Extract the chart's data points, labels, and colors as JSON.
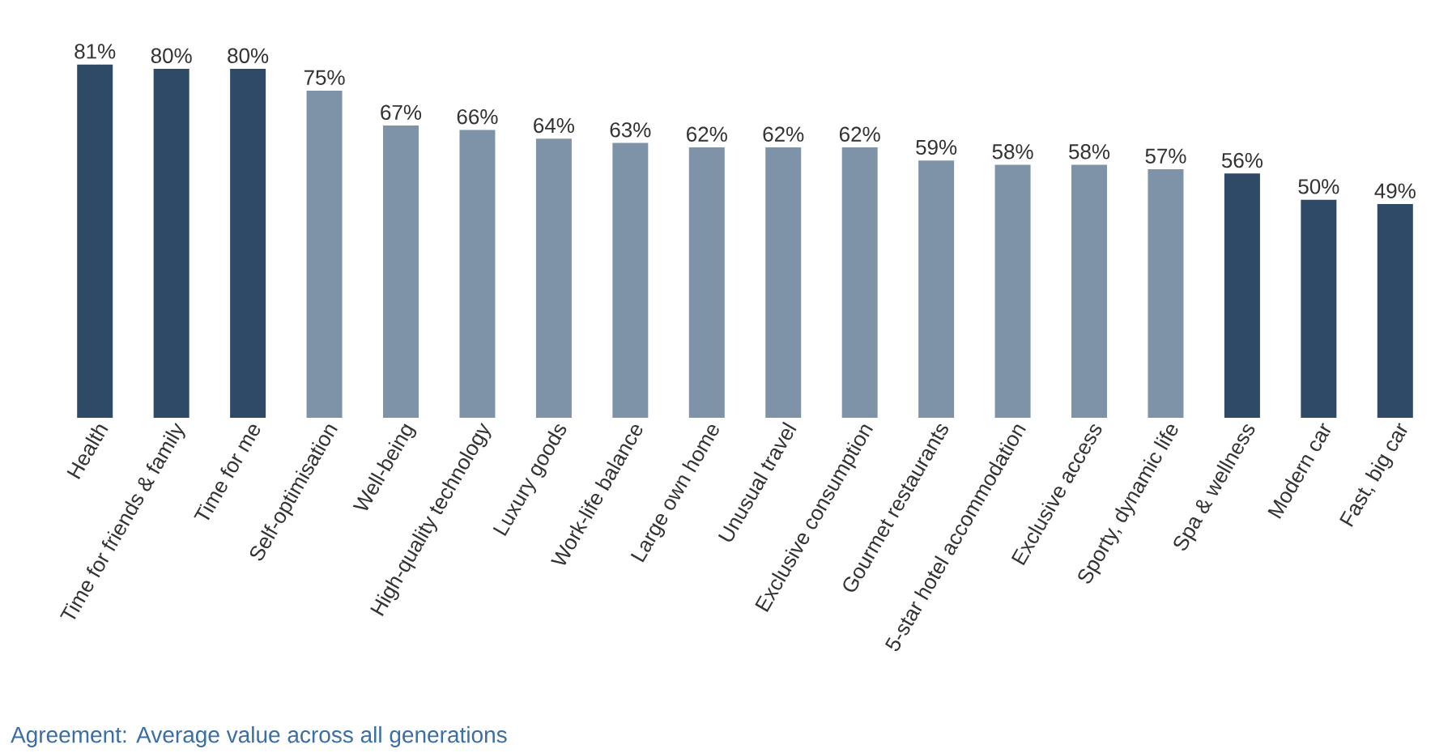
{
  "chart_data": {
    "type": "bar",
    "categories": [
      "Health",
      "Time for friends & family",
      "Time for me",
      "Self-optimisation",
      "Well-being",
      "High-quality technology",
      "Luxury goods",
      "Work-life balance",
      "Large own home",
      "Unusual travel",
      "Exclusive consumption",
      "Gourmet restaurants",
      "5-star hotel accommodation",
      "Exclusive access",
      "Sporty, dynamic life",
      "Spa & wellness",
      "Modern car",
      "Fast, big car"
    ],
    "values": [
      81,
      80,
      80,
      75,
      67,
      66,
      64,
      63,
      62,
      62,
      62,
      59,
      58,
      58,
      57,
      56,
      50,
      49
    ],
    "value_labels": [
      "81%",
      "80%",
      "80%",
      "75%",
      "67%",
      "66%",
      "64%",
      "63%",
      "62%",
      "62%",
      "62%",
      "59%",
      "58%",
      "58%",
      "57%",
      "56%",
      "50%",
      "49%"
    ],
    "colors": [
      "#2e4a66",
      "#2e4a66",
      "#2e4a66",
      "#7f93a8",
      "#7f93a8",
      "#7f93a8",
      "#7f93a8",
      "#7f93a8",
      "#7f93a8",
      "#7f93a8",
      "#7f93a8",
      "#7f93a8",
      "#7f93a8",
      "#7f93a8",
      "#7f93a8",
      "#2e4a66",
      "#2e4a66",
      "#2e4a66"
    ],
    "tick_labels": "x",
    "grid": false,
    "annotations": [
      "Agreement: Average value across all generations"
    ]
  }
}
